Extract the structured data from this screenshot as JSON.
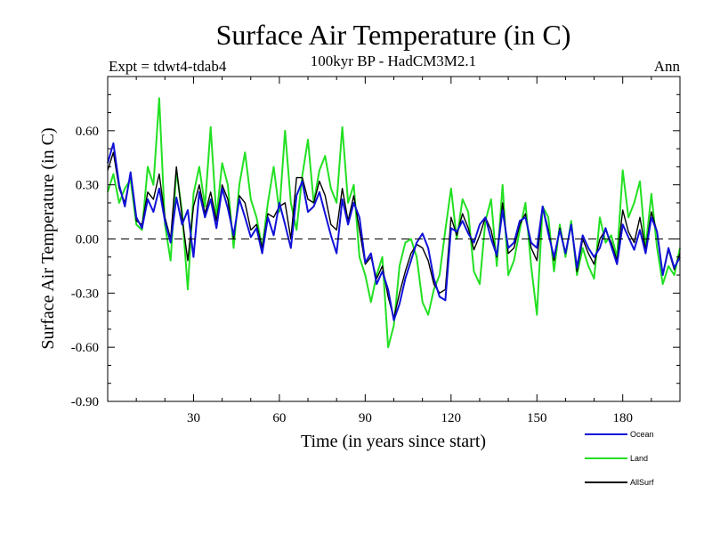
{
  "chart_data": {
    "type": "line",
    "title": "Surface Air Temperature (in C)",
    "subtitle": "100kyr BP - HadCM3M2.1",
    "left_label": "Expt = tdwt4-tdab4",
    "right_label": "Ann",
    "xlabel": "Time (in years since start)",
    "ylabel": "Surface Air Temperature (in C)",
    "xlim": [
      0,
      200
    ],
    "ylim": [
      -0.9,
      0.9
    ],
    "x_ticks": [
      30,
      60,
      90,
      120,
      150,
      180
    ],
    "x_tick_labels": [
      "30",
      "60",
      "90",
      "120",
      "150",
      "180"
    ],
    "y_ticks": [
      -0.9,
      -0.6,
      -0.3,
      0.0,
      0.3,
      0.6
    ],
    "y_tick_labels": [
      "-0.90",
      "-0.60",
      "-0.30",
      "0.00",
      "0.30",
      "0.60"
    ],
    "reference_line": 0.0,
    "legend_position": "bottom-right",
    "series": [
      {
        "name": "Ocean",
        "color": "#1010d8",
        "x": [
          0,
          2,
          4,
          6,
          8,
          10,
          12,
          14,
          16,
          18,
          20,
          22,
          24,
          26,
          28,
          30,
          32,
          34,
          36,
          38,
          40,
          42,
          44,
          46,
          48,
          50,
          52,
          54,
          56,
          58,
          60,
          62,
          64,
          66,
          68,
          70,
          72,
          74,
          76,
          78,
          80,
          82,
          84,
          86,
          88,
          90,
          92,
          94,
          96,
          98,
          100,
          102,
          104,
          106,
          108,
          110,
          112,
          114,
          116,
          118,
          120,
          122,
          124,
          126,
          128,
          130,
          132,
          134,
          136,
          138,
          140,
          142,
          144,
          146,
          148,
          150,
          152,
          154,
          156,
          158,
          160,
          162,
          164,
          166,
          168,
          170,
          172,
          174,
          176,
          178,
          180,
          182,
          184,
          186,
          188,
          190,
          192,
          194,
          196,
          198,
          200
        ],
        "values": [
          0.42,
          0.53,
          0.3,
          0.18,
          0.37,
          0.12,
          0.06,
          0.22,
          0.15,
          0.28,
          0.1,
          -0.02,
          0.23,
          0.08,
          0.16,
          -0.1,
          0.26,
          0.12,
          0.22,
          0.06,
          0.28,
          0.17,
          0.02,
          0.22,
          0.12,
          0.01,
          0.06,
          -0.08,
          0.12,
          0.02,
          0.2,
          0.08,
          -0.05,
          0.24,
          0.32,
          0.15,
          0.18,
          0.26,
          0.14,
          0.02,
          -0.08,
          0.22,
          0.08,
          0.2,
          0.12,
          -0.13,
          -0.08,
          -0.25,
          -0.18,
          -0.28,
          -0.45,
          -0.36,
          -0.22,
          -0.12,
          -0.02,
          0.03,
          -0.05,
          -0.22,
          -0.32,
          -0.34,
          0.06,
          0.04,
          0.1,
          0.03,
          -0.02,
          0.08,
          0.12,
          0.0,
          -0.09,
          0.16,
          -0.05,
          -0.02,
          0.1,
          0.12,
          -0.02,
          -0.05,
          0.18,
          0.03,
          -0.1,
          0.05,
          -0.08,
          0.08,
          -0.16,
          0.02,
          -0.05,
          -0.1,
          -0.05,
          0.06,
          -0.04,
          -0.14,
          0.08,
          0.01,
          -0.06,
          0.05,
          -0.08,
          0.12,
          0.04,
          -0.2,
          -0.05,
          -0.16,
          -0.1
        ]
      },
      {
        "name": "Land",
        "color": "#22e022",
        "x": [
          0,
          2,
          4,
          6,
          8,
          10,
          12,
          14,
          16,
          18,
          20,
          22,
          24,
          26,
          28,
          30,
          32,
          34,
          36,
          38,
          40,
          42,
          44,
          46,
          48,
          50,
          52,
          54,
          56,
          58,
          60,
          62,
          64,
          66,
          68,
          70,
          72,
          74,
          76,
          78,
          80,
          82,
          84,
          86,
          88,
          90,
          92,
          94,
          96,
          98,
          100,
          102,
          104,
          106,
          108,
          110,
          112,
          114,
          116,
          118,
          120,
          122,
          124,
          126,
          128,
          130,
          132,
          134,
          136,
          138,
          140,
          142,
          144,
          146,
          148,
          150,
          152,
          154,
          156,
          158,
          160,
          162,
          164,
          166,
          168,
          170,
          172,
          174,
          176,
          178,
          180,
          182,
          184,
          186,
          188,
          190,
          192,
          194,
          196,
          198,
          200
        ],
        "values": [
          0.26,
          0.36,
          0.2,
          0.28,
          0.33,
          0.08,
          0.05,
          0.4,
          0.3,
          0.78,
          0.08,
          -0.12,
          0.38,
          0.15,
          -0.28,
          0.25,
          0.4,
          0.18,
          0.62,
          0.12,
          0.42,
          0.3,
          -0.05,
          0.3,
          0.48,
          0.22,
          0.12,
          -0.05,
          0.2,
          0.4,
          0.15,
          0.6,
          0.2,
          0.05,
          0.35,
          0.55,
          0.2,
          0.38,
          0.46,
          0.28,
          0.2,
          0.62,
          0.2,
          0.3,
          -0.1,
          -0.2,
          -0.35,
          -0.2,
          -0.1,
          -0.6,
          -0.48,
          -0.15,
          -0.02,
          0.0,
          -0.1,
          -0.35,
          -0.42,
          -0.28,
          -0.2,
          0.05,
          0.28,
          0.0,
          0.22,
          0.15,
          -0.18,
          -0.25,
          0.1,
          0.22,
          -0.15,
          0.3,
          -0.2,
          -0.12,
          0.05,
          0.2,
          -0.15,
          -0.42,
          0.18,
          0.12,
          -0.18,
          0.08,
          -0.1,
          0.1,
          -0.2,
          -0.05,
          -0.15,
          -0.22,
          0.12,
          -0.02,
          0.02,
          -0.1,
          0.38,
          0.12,
          0.2,
          0.32,
          -0.05,
          0.25,
          -0.05,
          -0.25,
          -0.15,
          -0.2,
          -0.05
        ]
      },
      {
        "name": "AllSurf",
        "color": "#000000",
        "x": [
          0,
          2,
          4,
          6,
          8,
          10,
          12,
          14,
          16,
          18,
          20,
          22,
          24,
          26,
          28,
          30,
          32,
          34,
          36,
          38,
          40,
          42,
          44,
          46,
          48,
          50,
          52,
          54,
          56,
          58,
          60,
          62,
          64,
          66,
          68,
          70,
          72,
          74,
          76,
          78,
          80,
          82,
          84,
          86,
          88,
          90,
          92,
          94,
          96,
          98,
          100,
          102,
          104,
          106,
          108,
          110,
          112,
          114,
          116,
          118,
          120,
          122,
          124,
          126,
          128,
          130,
          132,
          134,
          136,
          138,
          140,
          142,
          144,
          146,
          148,
          150,
          152,
          154,
          156,
          158,
          160,
          162,
          164,
          166,
          168,
          170,
          172,
          174,
          176,
          178,
          180,
          182,
          184,
          186,
          188,
          190,
          192,
          194,
          196,
          198,
          200
        ],
        "values": [
          0.38,
          0.48,
          0.28,
          0.2,
          0.36,
          0.1,
          0.08,
          0.26,
          0.22,
          0.36,
          0.12,
          0.0,
          0.4,
          0.12,
          -0.12,
          0.18,
          0.3,
          0.14,
          0.26,
          0.1,
          0.3,
          0.22,
          0.0,
          0.24,
          0.2,
          0.05,
          0.08,
          -0.05,
          0.14,
          0.12,
          0.18,
          0.2,
          0.0,
          0.34,
          0.34,
          0.22,
          0.2,
          0.32,
          0.24,
          0.08,
          0.05,
          0.28,
          0.1,
          0.24,
          0.05,
          -0.14,
          -0.1,
          -0.22,
          -0.15,
          -0.32,
          -0.44,
          -0.3,
          -0.18,
          -0.08,
          -0.03,
          -0.05,
          -0.12,
          -0.25,
          -0.3,
          -0.28,
          0.12,
          0.02,
          0.14,
          0.06,
          -0.06,
          0.02,
          0.12,
          0.05,
          -0.1,
          0.2,
          -0.08,
          -0.05,
          0.08,
          0.14,
          -0.05,
          -0.12,
          0.18,
          0.05,
          -0.12,
          0.06,
          -0.08,
          0.08,
          -0.18,
          0.0,
          -0.08,
          -0.14,
          0.0,
          0.05,
          -0.02,
          -0.12,
          0.16,
          0.04,
          -0.02,
          0.12,
          -0.06,
          0.15,
          0.04,
          -0.2,
          -0.06,
          -0.17,
          -0.08
        ]
      }
    ]
  }
}
